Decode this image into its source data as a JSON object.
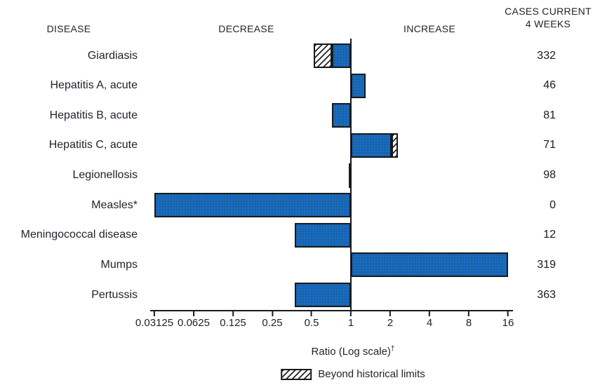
{
  "header": {
    "disease": "DISEASE",
    "decrease": "DECREASE",
    "increase": "INCREASE",
    "cases_line1": "CASES CURRENT",
    "cases_line2": "4 WEEKS"
  },
  "chart_data": {
    "type": "bar",
    "orientation": "horizontal",
    "scale": "log2",
    "baseline": 1,
    "xlim": [
      0.03125,
      16
    ],
    "ticks": [
      "0.03125",
      "0.0625",
      "0.125",
      "0.25",
      "0.5",
      "1",
      "2",
      "4",
      "8",
      "16"
    ],
    "axis_label": "Ratio (Log scale)",
    "axis_label_superscript": "†",
    "legend": {
      "label": "Beyond historical limits",
      "swatch": "diagonal-hatch"
    },
    "colors": {
      "bar_fill": "#1a69c3",
      "bar_border": "#17191d",
      "hatch": "#17191d"
    },
    "rows": [
      {
        "label": "Giardiasis",
        "ratio": 0.52,
        "beyond_limit_from": 0.72,
        "cases": "332"
      },
      {
        "label": "Hepatitis A, acute",
        "ratio": 1.3,
        "cases": "46"
      },
      {
        "label": "Hepatitis B, acute",
        "ratio": 0.72,
        "cases": "81"
      },
      {
        "label": "Hepatitis C, acute",
        "ratio": 2.3,
        "beyond_limit_from": 2.05,
        "cases": "71"
      },
      {
        "label": "Legionellosis",
        "ratio": 0.96,
        "cases": "98"
      },
      {
        "label": "Measles*",
        "ratio": 0.03125,
        "cases": "0"
      },
      {
        "label": "Meningococcal disease",
        "ratio": 0.37,
        "cases": "12"
      },
      {
        "label": "Mumps",
        "ratio": 16,
        "cases": "319"
      },
      {
        "label": "Pertussis",
        "ratio": 0.37,
        "cases": "363"
      }
    ]
  }
}
